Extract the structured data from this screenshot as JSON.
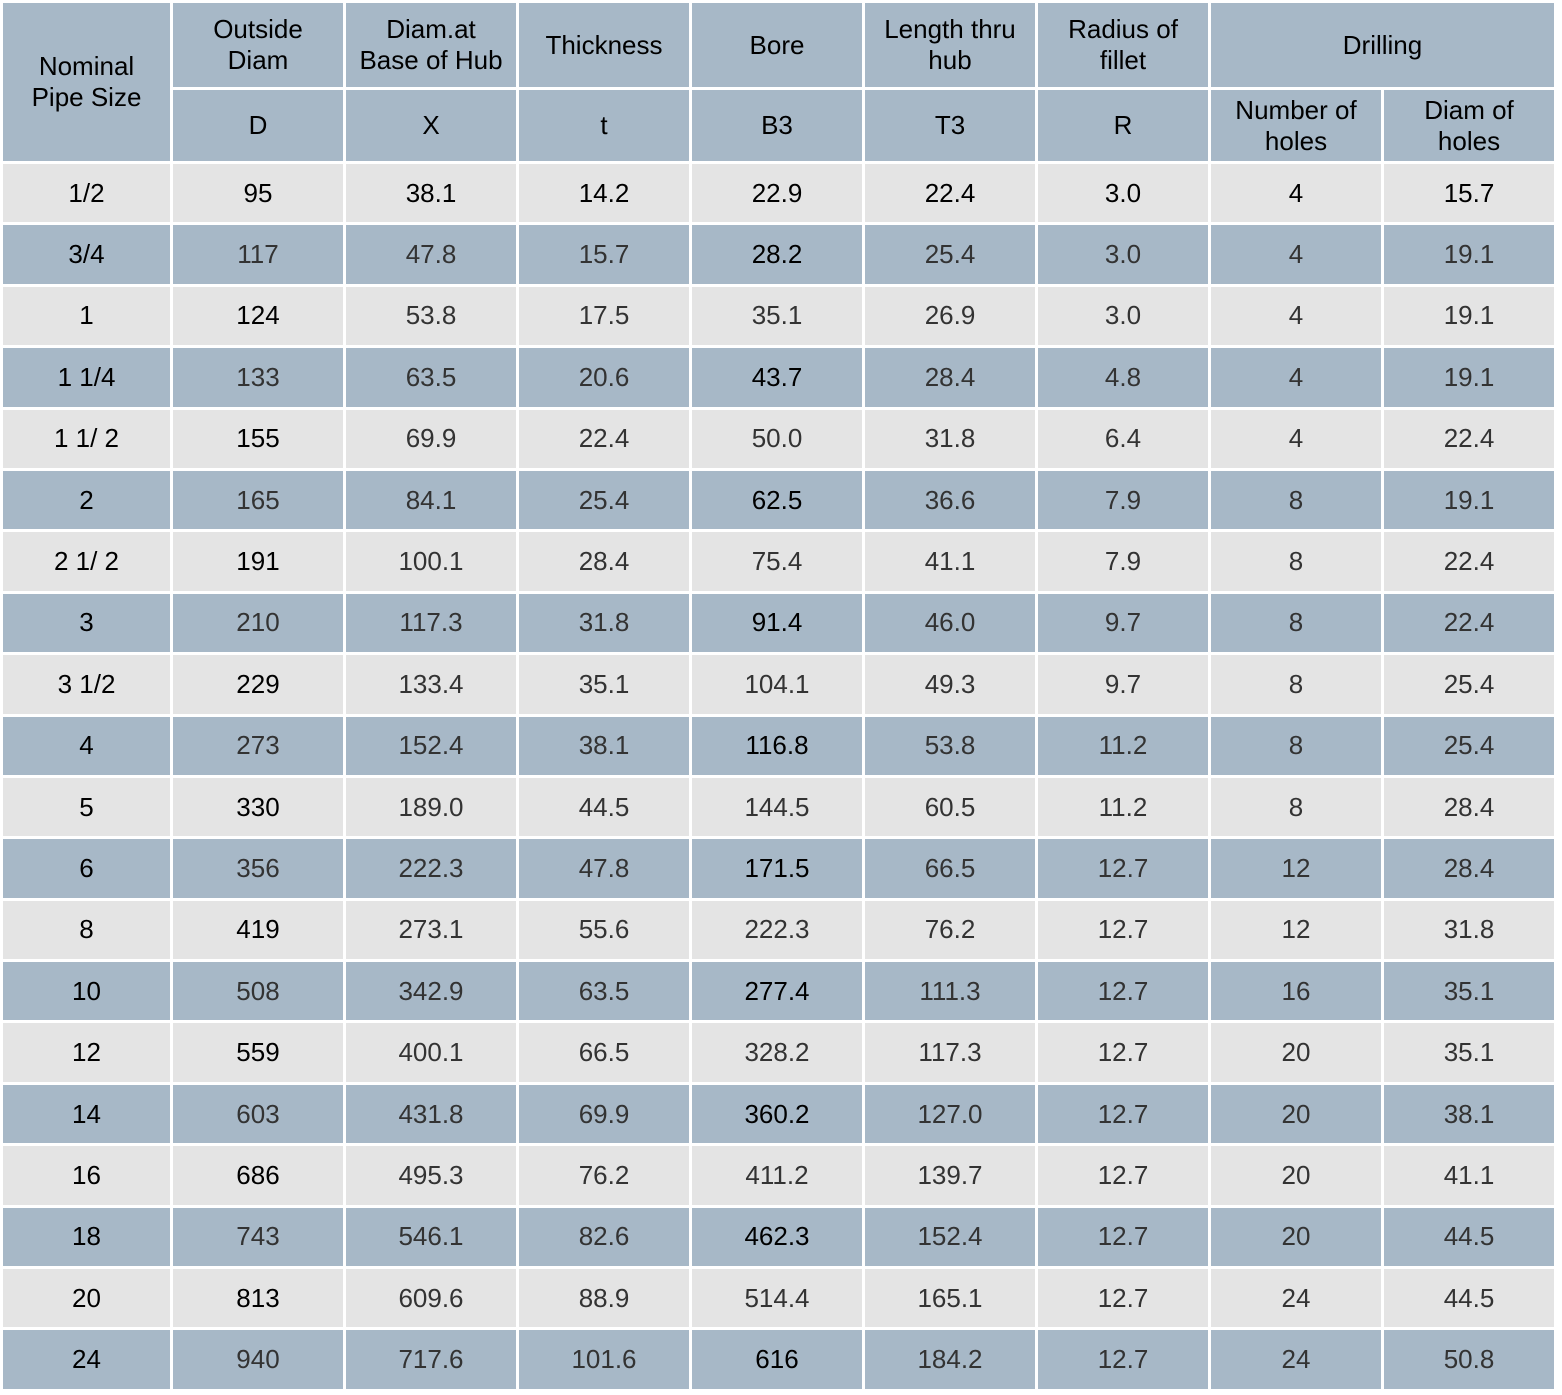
{
  "headers": {
    "nominal": "Nominal\nPipe Size",
    "outside_diam": "Outside\nDiam",
    "diam_base_hub": "Diam.at\nBase of Hub",
    "thickness": "Thickness",
    "bore": "Bore",
    "length_thru_hub": "Length  thru\nhub",
    "radius_fillet": "Radius of\nfillet",
    "drilling": "Drilling",
    "sym_D": "D",
    "sym_X": "X",
    "sym_t": "t",
    "sym_B3": "B3",
    "sym_T3": "T3",
    "sym_R": "R",
    "num_holes": "Number of\nholes",
    "diam_holes": "Diam of\nholes"
  },
  "rows": [
    [
      "1/2",
      "95",
      "38.1",
      "14.2",
      "22.9",
      "22.4",
      "3.0",
      "4",
      "15.7"
    ],
    [
      "3/4",
      "117",
      "47.8",
      "15.7",
      "28.2",
      "25.4",
      "3.0",
      "4",
      "19.1"
    ],
    [
      "1",
      "124",
      "53.8",
      "17.5",
      "35.1",
      "26.9",
      "3.0",
      "4",
      "19.1"
    ],
    [
      "1 1/4",
      "133",
      "63.5",
      "20.6",
      "43.7",
      "28.4",
      "4.8",
      "4",
      "19.1"
    ],
    [
      "1 1/ 2",
      "155",
      "69.9",
      "22.4",
      "50.0",
      "31.8",
      "6.4",
      "4",
      "22.4"
    ],
    [
      "2",
      "165",
      "84.1",
      "25.4",
      "62.5",
      "36.6",
      "7.9",
      "8",
      "19.1"
    ],
    [
      "2 1/ 2",
      "191",
      "100.1",
      "28.4",
      "75.4",
      "41.1",
      "7.9",
      "8",
      "22.4"
    ],
    [
      "3",
      "210",
      "117.3",
      "31.8",
      "91.4",
      "46.0",
      "9.7",
      "8",
      "22.4"
    ],
    [
      "3 1/2",
      "229",
      "133.4",
      "35.1",
      "104.1",
      "49.3",
      "9.7",
      "8",
      "25.4"
    ],
    [
      "4",
      "273",
      "152.4",
      "38.1",
      "116.8",
      "53.8",
      "11.2",
      "8",
      "25.4"
    ],
    [
      "5",
      "330",
      "189.0",
      "44.5",
      "144.5",
      "60.5",
      "11.2",
      "8",
      "28.4"
    ],
    [
      "6",
      "356",
      "222.3",
      "47.8",
      "171.5",
      "66.5",
      "12.7",
      "12",
      "28.4"
    ],
    [
      "8",
      "419",
      "273.1",
      "55.6",
      "222.3",
      "76.2",
      "12.7",
      "12",
      "31.8"
    ],
    [
      "10",
      "508",
      "342.9",
      "63.5",
      "277.4",
      "111.3",
      "12.7",
      "16",
      "35.1"
    ],
    [
      "12",
      "559",
      "400.1",
      "66.5",
      "328.2",
      "117.3",
      "12.7",
      "20",
      "35.1"
    ],
    [
      "14",
      "603",
      "431.8",
      "69.9",
      "360.2",
      "127.0",
      "12.7",
      "20",
      "38.1"
    ],
    [
      "16",
      "686",
      "495.3",
      "76.2",
      "411.2",
      "139.7",
      "12.7",
      "20",
      "41.1"
    ],
    [
      "18",
      "743",
      "546.1",
      "82.6",
      "462.3",
      "152.4",
      "12.7",
      "20",
      "44.5"
    ],
    [
      "20",
      "813",
      "609.6",
      "88.9",
      "514.4",
      "165.1",
      "12.7",
      "24",
      "44.5"
    ],
    [
      "24",
      "940",
      "717.6",
      "101.6",
      "616",
      "184.2",
      "12.7",
      "24",
      "50.8"
    ]
  ]
}
